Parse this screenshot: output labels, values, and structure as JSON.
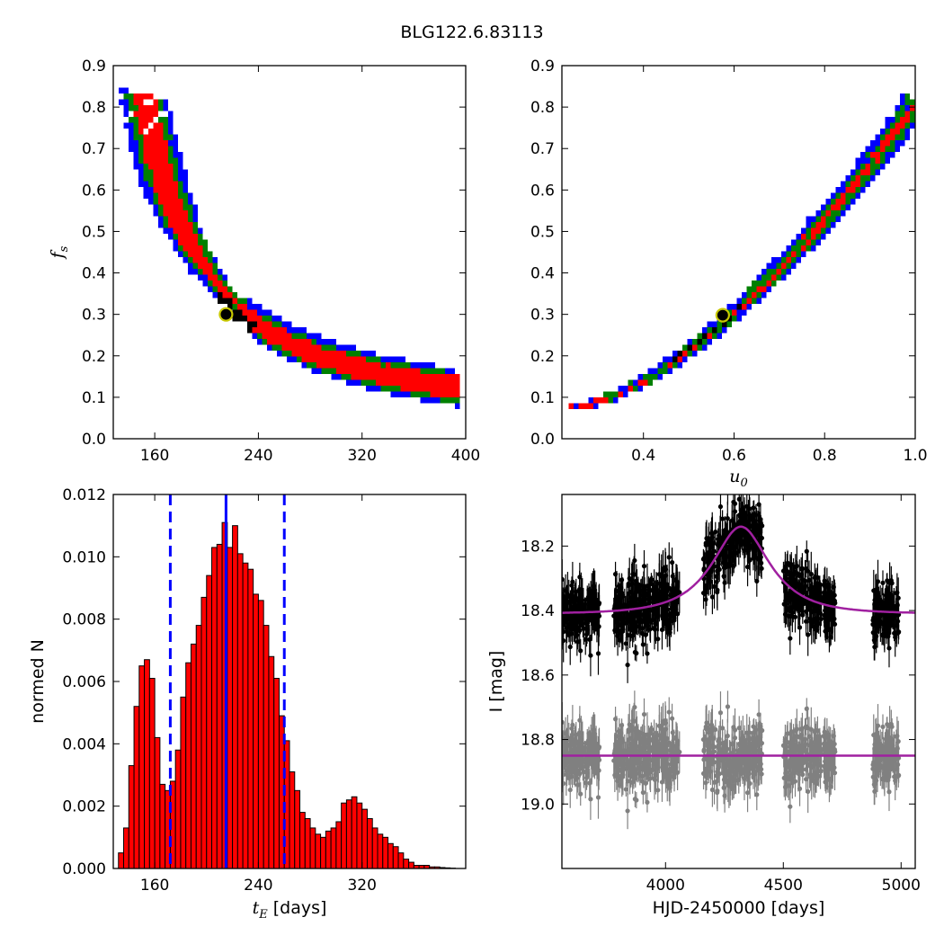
{
  "figure_title": "BLG122.6.83113",
  "colors": {
    "blue": "#0000ff",
    "green": "#008000",
    "red": "#ff0000",
    "black": "#000000",
    "grey": "#808080",
    "purple": "#a020a0",
    "marker_face": "#00000000",
    "marker_edge": "#c8c800"
  },
  "chart_data": [
    {
      "id": "panel_tE_fs",
      "type": "heatmap",
      "title": "",
      "xlabel": "",
      "ylabel_base": "f",
      "ylabel_sub": "s",
      "xlim": [
        128,
        400
      ],
      "ylim": [
        0.0,
        0.9
      ],
      "xticks": [
        160,
        240,
        320,
        400
      ],
      "yticks": [
        0.0,
        0.1,
        0.2,
        0.3,
        0.4,
        0.5,
        0.6,
        0.7,
        0.8,
        0.9
      ],
      "confidence_levels": [
        "blue",
        "green",
        "red",
        "black"
      ],
      "best_fit": {
        "x": 215,
        "y": 0.3
      }
    },
    {
      "id": "panel_u0_fs",
      "type": "heatmap",
      "title": "",
      "xlabel_base": "u",
      "xlabel_sub": "0",
      "ylabel": "",
      "xlim": [
        0.22,
        1.0
      ],
      "ylim": [
        0.0,
        0.9
      ],
      "xticks": [
        0.4,
        0.6,
        0.8,
        1.0
      ],
      "yticks": [
        0.0,
        0.1,
        0.2,
        0.3,
        0.4,
        0.5,
        0.6,
        0.7,
        0.8,
        0.9
      ],
      "confidence_levels": [
        "blue",
        "green",
        "red",
        "black"
      ],
      "best_fit": {
        "x": 0.575,
        "y": 0.298
      }
    },
    {
      "id": "panel_hist",
      "type": "bar",
      "title": "",
      "xlabel_base": "t",
      "xlabel_sub": "E",
      "xlabel_suffix": " [days]",
      "ylabel": "normed N",
      "xlim": [
        128,
        400
      ],
      "ylim": [
        0.0,
        0.012
      ],
      "xticks": [
        160,
        240,
        320
      ],
      "yticks": [
        0.0,
        0.002,
        0.004,
        0.006,
        0.008,
        0.01,
        0.012
      ],
      "ytick_labels": [
        "0.000",
        "0.002",
        "0.004",
        "0.006",
        "0.008",
        "0.010",
        "0.012"
      ],
      "bin_start": 132,
      "bin_width": 4,
      "values": [
        0.0005,
        0.0013,
        0.0033,
        0.0052,
        0.0065,
        0.0067,
        0.0061,
        0.0042,
        0.0027,
        0.0025,
        0.0028,
        0.0038,
        0.0055,
        0.0066,
        0.0072,
        0.0078,
        0.0087,
        0.0094,
        0.0103,
        0.0104,
        0.0111,
        0.0103,
        0.011,
        0.0101,
        0.0098,
        0.0096,
        0.0088,
        0.0086,
        0.0078,
        0.0068,
        0.0061,
        0.0049,
        0.0041,
        0.0031,
        0.0025,
        0.0018,
        0.0016,
        0.0013,
        0.0011,
        0.001,
        0.0012,
        0.0013,
        0.0015,
        0.0021,
        0.0022,
        0.0023,
        0.0021,
        0.0019,
        0.0016,
        0.0013,
        0.0011,
        0.001,
        0.0008,
        0.0007,
        0.0005,
        0.0003,
        0.0002,
        0.0001,
        0.0001,
        0.0001,
        5e-05,
        5e-05,
        3e-05,
        2e-05,
        1e-05
      ],
      "bar_color": "red",
      "median": 215,
      "interval": [
        172,
        260
      ]
    },
    {
      "id": "panel_lightcurve",
      "type": "scatter",
      "title": "",
      "xlabel": "HJD-2450000 [days]",
      "ylabel": "I [mag]",
      "xlim": [
        3560,
        5060
      ],
      "ylim": [
        19.2,
        18.04
      ],
      "y_inverted": true,
      "xticks": [
        4000,
        4500,
        5000
      ],
      "yticks": [
        18.2,
        18.4,
        18.6,
        18.8,
        19.0
      ],
      "model": {
        "baseline": 18.41,
        "peak_mag": 18.14,
        "t0": 4320,
        "tE": 215,
        "u0": 0.575,
        "fs": 0.298
      },
      "residual_baseline": 18.85,
      "seasons": [
        [
          3560,
          3720
        ],
        [
          3780,
          4060
        ],
        [
          4160,
          4410
        ],
        [
          4500,
          4720
        ],
        [
          4880,
          4990
        ]
      ]
    }
  ]
}
